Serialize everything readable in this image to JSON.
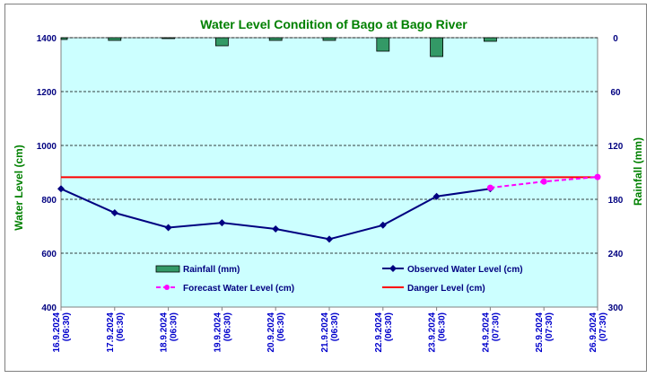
{
  "chart_data": {
    "type": "bar+line",
    "title": "Water Level Condition of Bago at Bago River",
    "ylabel_left": "Water Level (cm)",
    "ylabel_right": "Rainfall (mm)",
    "ylim_left": [
      400,
      1400
    ],
    "yticks_left": [
      400,
      600,
      800,
      1000,
      1200,
      1400
    ],
    "ylim_right": [
      300,
      0
    ],
    "yticks_right": [
      0,
      60,
      120,
      180,
      240,
      300
    ],
    "right_axis_inverted": true,
    "grid": "horizontal dashed",
    "plot_background": "#ccffff",
    "categories": [
      [
        "16.9.2024",
        "(06:30)"
      ],
      [
        "17.9.2024",
        "(06:30)"
      ],
      [
        "18.9.2024",
        "(06:30)"
      ],
      [
        "19.9.2024",
        "(06:30)"
      ],
      [
        "20.9.2024",
        "(06:30)"
      ],
      [
        "21.9.2024",
        "(06:30)"
      ],
      [
        "22.9.2024",
        "(06:30)"
      ],
      [
        "23.9.2024",
        "(06:30)"
      ],
      [
        "24.9.2024",
        "(07:30)"
      ],
      [
        "25.9.2024",
        "(07:30)"
      ],
      [
        "26.9.2024",
        "(07:30)"
      ]
    ],
    "series": [
      {
        "name": "Rainfall (mm)",
        "type": "bar",
        "axis": "right",
        "color": "#339966",
        "values": [
          2,
          3,
          1,
          9,
          3,
          3,
          15,
          21,
          4,
          null,
          null
        ]
      },
      {
        "name": "Observed Water Level (cm)",
        "type": "line",
        "axis": "left",
        "color": "#000080",
        "marker": "diamond",
        "values": [
          839,
          750,
          695,
          713,
          690,
          652,
          704,
          811,
          839,
          null,
          null
        ]
      },
      {
        "name": "Forecast Water Level (cm)",
        "type": "line",
        "axis": "left",
        "color": "#ff00ff",
        "dash": true,
        "marker": "circle",
        "values": [
          null,
          null,
          null,
          null,
          null,
          null,
          null,
          null,
          843,
          866,
          883
        ]
      },
      {
        "name": "Danger Level (cm)",
        "type": "line",
        "axis": "left",
        "color": "#ff0000",
        "values": [
          882,
          882,
          882,
          882,
          882,
          882,
          882,
          882,
          882,
          882,
          882
        ]
      }
    ],
    "legend": "inside bottom"
  }
}
